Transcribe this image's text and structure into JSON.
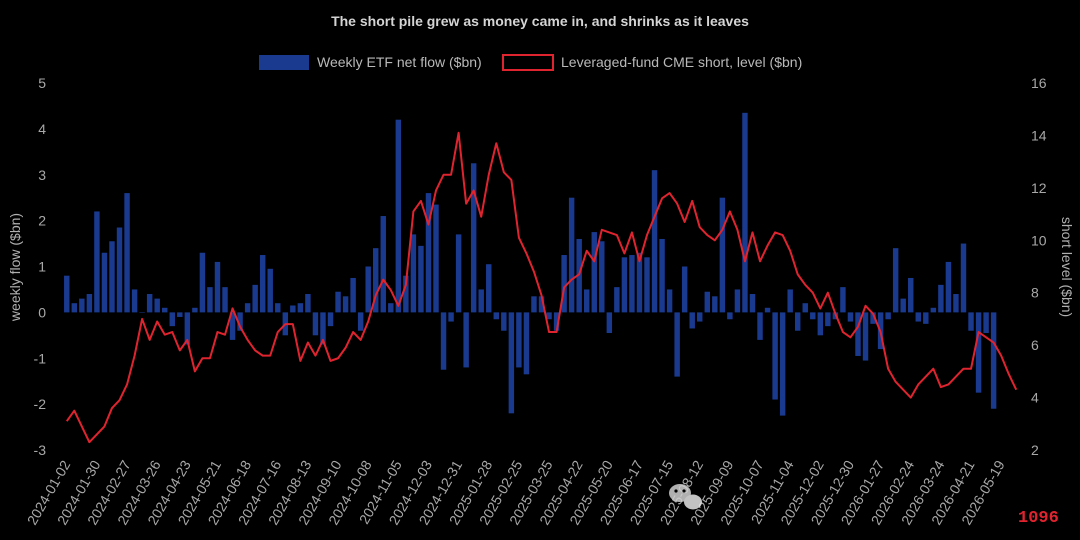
{
  "chart_data": {
    "type": "bar+line",
    "title": "The short pile grew as money came in, and shrinks as it leaves",
    "ylabel_left": "weekly flow ($bn)",
    "ylabel_right": "short level ($bn)",
    "ylim_left": [
      -3,
      5
    ],
    "ylim_right": [
      2,
      16
    ],
    "yticks_left": [
      "5",
      "4",
      "3",
      "2",
      "1",
      "0",
      "-1",
      "-2",
      "-3"
    ],
    "yticks_right": [
      "16",
      "14",
      "12",
      "10",
      "8",
      "6",
      "4",
      "2"
    ],
    "x_tick_labels": [
      "2024-01-02",
      "2024-01-30",
      "2024-02-27",
      "2024-03-26",
      "2024-04-23",
      "2024-05-21",
      "2024-06-18",
      "2024-07-16",
      "2024-08-13",
      "2024-09-10",
      "2024-10-08",
      "2024-11-05",
      "2024-12-03",
      "2024-12-31",
      "2025-01-28",
      "2025-02-25",
      "2025-03-25",
      "2025-04-22",
      "2025-05-20",
      "2025-06-17",
      "2025-07-15",
      "2025-08-12",
      "2025-09-09",
      "2025-10-07",
      "2025-11-04",
      "2025-12-02",
      "2025-12-30",
      "2026-01-27",
      "2026-02-24",
      "2026-03-24",
      "2026-04-21",
      "2026-05-19"
    ],
    "grid": false,
    "legend_placement": "top-center",
    "legend": [
      {
        "label": "Weekly ETF net flow ($bn)",
        "kind": "bar",
        "color": "#1a3a8f"
      },
      {
        "label": "Leveraged-fund CME short, level ($bn)",
        "kind": "line",
        "color": "#e0242f"
      }
    ],
    "series": [
      {
        "name": "Weekly ETF net flow ($bn)",
        "axis": "left",
        "kind": "bar",
        "values": [
          0.8,
          0.2,
          0.3,
          0.4,
          2.2,
          1.3,
          1.55,
          1.85,
          2.6,
          0.5,
          0,
          0.4,
          0.3,
          0.1,
          -0.3,
          -0.1,
          -0.7,
          0.1,
          1.3,
          0.55,
          1.1,
          0.55,
          -0.6,
          -0.4,
          0.2,
          0.6,
          1.25,
          0.95,
          0.2,
          -0.5,
          0.15,
          0.2,
          0.4,
          -0.5,
          -0.7,
          -0.3,
          0.45,
          0.35,
          0.75,
          -0.4,
          1,
          1.4,
          2.1,
          0.2,
          4.2,
          0.8,
          1.7,
          1.45,
          2.6,
          2.35,
          -1.25,
          -0.2,
          1.7,
          -1.2,
          3.25,
          0.5,
          1.05,
          -0.15,
          -0.4,
          -2.2,
          -1.2,
          -1.35,
          0.35,
          0.35,
          -0.15,
          -0.4,
          1.25,
          2.5,
          1.6,
          0.5,
          1.75,
          1.55,
          -0.45,
          0.55,
          1.2,
          1.25,
          1.3,
          1.2,
          3.1,
          1.6,
          0.5,
          -1.4,
          1,
          -0.35,
          -0.2,
          0.45,
          0.35,
          2.5,
          -0.15,
          0.5,
          4.35,
          0.4,
          -0.6,
          0.1,
          -1.9,
          -2.25,
          0.5,
          -0.4,
          0.2,
          -0.15,
          -0.5,
          -0.3,
          -0.15,
          0.55,
          -0.2,
          -0.95,
          -1.05,
          -0.25,
          -0.8,
          -0.15,
          1.4,
          0.3,
          0.75,
          -0.2,
          -0.25,
          0.1,
          0.6,
          1.1,
          0.4,
          1.5,
          -0.4,
          -1.75,
          -0.45,
          -2.1
        ]
      },
      {
        "name": "Leveraged-fund CME short, level ($bn)",
        "axis": "right",
        "kind": "line",
        "values": [
          3.1,
          3.5,
          2.9,
          2.3,
          2.6,
          2.9,
          3.6,
          3.9,
          4.5,
          5.6,
          7,
          6.2,
          6.9,
          6.4,
          6.5,
          5.8,
          6.2,
          5,
          5.5,
          5.5,
          6.5,
          6.4,
          7.4,
          6.7,
          6.2,
          5.8,
          5.6,
          5.6,
          6.5,
          6.8,
          6.8,
          5.4,
          6.1,
          5.6,
          6.2,
          5.4,
          5.5,
          5.9,
          6.5,
          6.2,
          6.9,
          7.9,
          8.5,
          8.1,
          7.5,
          8.3,
          11.1,
          11.5,
          10.6,
          11.9,
          12.5,
          12.5,
          14.1,
          11.4,
          11.9,
          10.9,
          12.5,
          13.7,
          12.6,
          12.3,
          10.1,
          9.5,
          8.8,
          7.9,
          6.5,
          6.5,
          8.2,
          8.5,
          8.7,
          9.6,
          9.2,
          10.4,
          10.3,
          10.2,
          9.5,
          10.3,
          9.2,
          10.2,
          10.9,
          11.6,
          11.8,
          11.4,
          10.7,
          11.5,
          10.5,
          10.2,
          10,
          10.4,
          11.1,
          10.4,
          9.2,
          10.3,
          9.2,
          9.8,
          10.3,
          10.2,
          9.6,
          8.7,
          8.3,
          8,
          7.4,
          8,
          7.2,
          6.5,
          6.3,
          6.7,
          7.5,
          7.2,
          6.5,
          5.1,
          4.6,
          4.3,
          4,
          4.5,
          4.8,
          5.1,
          4.4,
          4.5,
          4.8,
          5.1,
          5.1,
          6.5,
          6.3,
          6.1,
          5.6,
          4.9,
          4.3
        ]
      }
    ]
  },
  "watermark": {
    "text": "1096",
    "icon": "wechat-icon"
  }
}
